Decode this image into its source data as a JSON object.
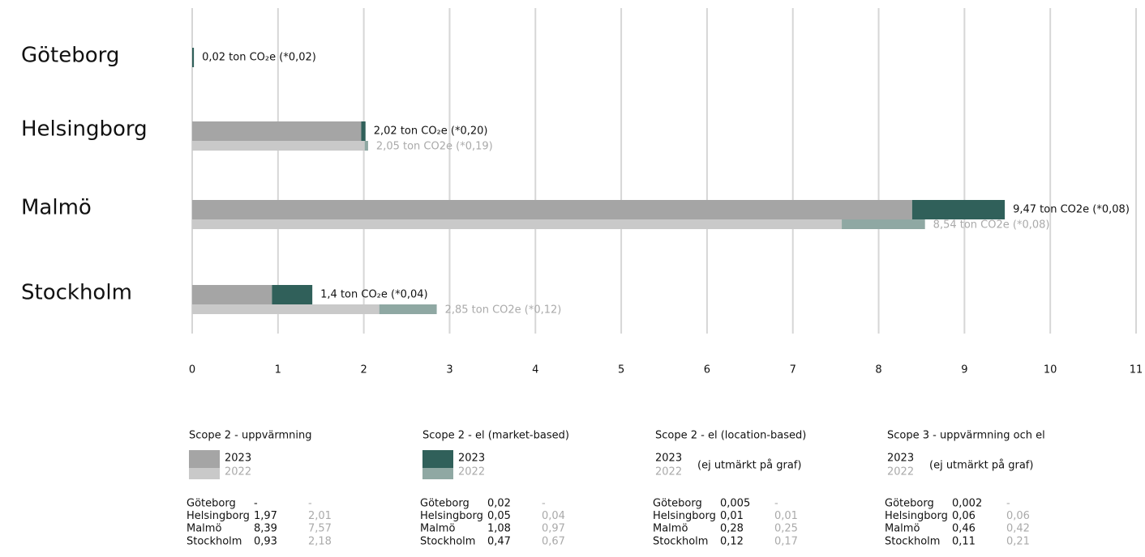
{
  "chart_data": {
    "type": "bar",
    "orientation": "horizontal",
    "categories": [
      "Göteborg",
      "Helsingborg",
      "Malmö",
      "Stockholm"
    ],
    "xlim": [
      0,
      11
    ],
    "xticks": [
      0,
      1,
      2,
      3,
      4,
      5,
      6,
      7,
      8,
      9,
      10,
      11
    ],
    "grid": true,
    "bar_labels": [
      [
        "0,02 ton CO₂e (*0,02)",
        "2,02 ton CO₂e (*0,20)",
        "9,47 ton CO2e (*0,08)",
        "1,4 ton CO₂e (*0,04)"
      ],
      [
        null,
        "2,05 ton CO2e (*0,19)",
        "8,54 ton CO2e (*0,08)",
        "2,85 ton CO2e (*0,12)"
      ]
    ],
    "groups": [
      {
        "title": "Scope 2 - uppvärmning",
        "series": [
          {
            "name": "2023",
            "color": "#a5a5a5",
            "values": [
              null,
              1.97,
              8.39,
              0.93
            ],
            "value_labels": [
              "-",
              "1,97",
              "8,39",
              "0,93"
            ]
          },
          {
            "name": "2022",
            "color": "#c9c9c9",
            "values": [
              null,
              2.01,
              7.57,
              2.18
            ],
            "value_labels": [
              "-",
              "2,01",
              "7,57",
              "2,18"
            ]
          }
        ]
      },
      {
        "title": "Scope 2 - el (market-based)",
        "series": [
          {
            "name": "2023",
            "color": "#30605a",
            "values": [
              0.02,
              0.05,
              1.08,
              0.47
            ],
            "value_labels": [
              "0,02",
              "0,05",
              "1,08",
              "0,47"
            ]
          },
          {
            "name": "2022",
            "color": "#8fa8a3",
            "values": [
              null,
              0.04,
              0.97,
              0.67
            ],
            "value_labels": [
              "-",
              "0,04",
              "0,97",
              "0,67"
            ]
          }
        ]
      },
      {
        "title": "Scope 2 - el (location-based)",
        "note": "(ej utmärkt på graf)",
        "series": [
          {
            "name": "2023",
            "values": [
              "0,005",
              "0,01",
              "0,28",
              "0,12"
            ]
          },
          {
            "name": "2022",
            "values": [
              "-",
              "0,01",
              "0,25",
              "0,17"
            ]
          }
        ]
      },
      {
        "title": "Scope 3 - uppvärmning och el",
        "note": "(ej utmärkt på graf)",
        "series": [
          {
            "name": "2023",
            "values": [
              "0,002",
              "0,06",
              "0,46",
              "0,11"
            ]
          },
          {
            "name": "2022",
            "values": [
              "-",
              "0,06",
              "0,42",
              "0,21"
            ]
          }
        ]
      }
    ]
  }
}
